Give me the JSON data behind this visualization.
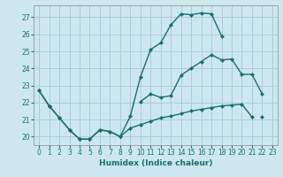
{
  "xlabel": "Humidex (Indice chaleur)",
  "bg_color": "#cce8ee",
  "grid_color": "#aacdd6",
  "line_color": "#1a6e6a",
  "xlim": [
    -0.5,
    23.5
  ],
  "ylim": [
    19.5,
    27.7
  ],
  "xticks": [
    0,
    1,
    2,
    3,
    4,
    5,
    6,
    7,
    8,
    9,
    10,
    11,
    12,
    13,
    14,
    15,
    16,
    17,
    18,
    19,
    20,
    21,
    22,
    23
  ],
  "yticks": [
    20,
    21,
    22,
    23,
    24,
    25,
    26,
    27
  ],
  "line1_y": [
    22.7,
    21.8,
    21.1,
    20.4,
    19.85,
    19.85,
    20.4,
    20.3,
    20.0,
    21.2,
    23.5,
    25.1,
    25.5,
    26.55,
    27.2,
    27.15,
    27.25,
    27.2,
    25.9,
    null,
    null,
    null,
    21.15,
    null
  ],
  "line2_y": [
    22.7,
    21.8,
    21.1,
    20.4,
    19.85,
    19.85,
    20.4,
    20.3,
    20.0,
    20.5,
    20.7,
    20.9,
    21.1,
    21.2,
    21.35,
    21.5,
    21.6,
    21.7,
    21.8,
    21.85,
    21.9,
    21.15,
    null,
    null
  ],
  "line3_y": [
    null,
    null,
    null,
    null,
    null,
    null,
    null,
    null,
    null,
    null,
    22.05,
    22.5,
    22.3,
    22.4,
    23.6,
    24.0,
    24.4,
    24.8,
    24.5,
    24.55,
    23.65,
    23.65,
    22.5,
    null
  ]
}
